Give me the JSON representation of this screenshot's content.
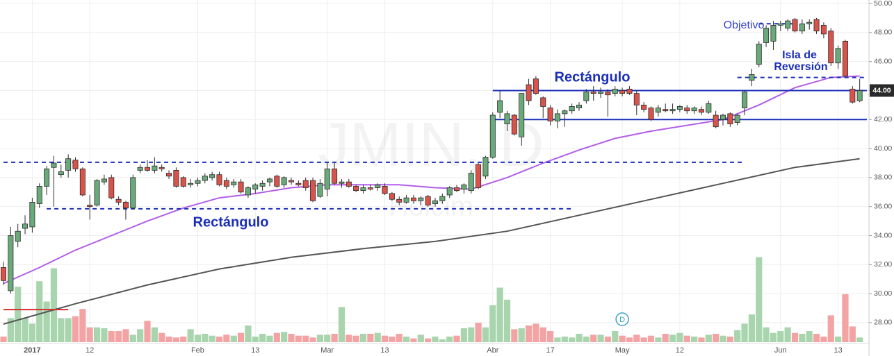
{
  "chart_data": {
    "type": "candlestick",
    "watermark": [
      "JMIN, D",
      "Holcim"
    ],
    "categories": [
      null,
      null,
      null,
      null,
      "2017",
      null,
      null,
      null,
      null,
      null,
      null,
      null,
      "12",
      null,
      null,
      null,
      null,
      null,
      null,
      null,
      null,
      null,
      null,
      null,
      null,
      null,
      null,
      "Feb",
      null,
      null,
      null,
      null,
      null,
      null,
      null,
      "13",
      null,
      null,
      null,
      null,
      null,
      null,
      null,
      null,
      null,
      "Mar",
      null,
      null,
      null,
      null,
      null,
      null,
      null,
      "13",
      null,
      null,
      null,
      null,
      null,
      null,
      null,
      null,
      null,
      null,
      null,
      null,
      null,
      null,
      "Abr",
      null,
      null,
      null,
      null,
      null,
      null,
      null,
      "17",
      null,
      null,
      null,
      null,
      null,
      null,
      null,
      null,
      null,
      "May",
      null,
      null,
      null,
      null,
      null,
      null,
      null,
      "12",
      null,
      null,
      null,
      null,
      null,
      null,
      null,
      null,
      null,
      null,
      null,
      null,
      null,
      "Jun",
      null,
      null,
      null,
      null,
      null,
      null,
      null,
      "13",
      null,
      null,
      null
    ],
    "open": [
      31.8,
      30.2,
      33.6,
      34.5,
      34.6,
      36.2,
      37.4,
      38.7,
      38.2,
      38.5,
      39.2,
      38.6,
      36.1,
      36.1,
      37.7,
      38.0,
      36.5,
      36.3,
      35.9,
      38.5,
      38.7,
      38.5,
      38.7,
      38.3,
      38.5,
      38.0,
      37.5,
      37.6,
      37.8,
      38.0,
      38.2,
      37.8,
      37.5,
      37.7,
      36.8,
      37.2,
      37.4,
      37.7,
      38.1,
      37.5,
      37.8,
      37.6,
      37.8,
      37.8,
      36.7,
      37.2,
      38.6,
      37.6,
      37.7,
      37.4,
      37.1,
      37.3,
      37.3,
      37.4,
      36.9,
      36.5,
      36.3,
      36.6,
      36.4,
      36.7,
      36.2,
      36.4,
      36.8,
      37.3,
      37.2,
      37.1,
      38.9,
      38.1,
      39.4,
      42.5,
      41.7,
      42.3,
      40.8,
      44.4,
      44.8,
      43.5,
      42.8,
      41.9,
      42.4,
      42.6,
      42.8,
      43.3,
      43.9,
      43.8,
      43.9,
      43.8,
      44.0,
      44.1,
      43.8,
      43.0,
      42.8,
      42.5,
      42.7,
      42.6,
      42.7,
      42.8,
      42.6,
      42.7,
      42.5,
      42.3,
      42.0,
      42.4,
      41.8,
      42.8,
      44.7,
      45.8,
      47.3,
      47.4,
      48.5,
      48.3,
      48.9,
      48.1,
      48.6,
      48.9,
      48.5,
      48.1,
      45.9,
      47.4,
      44.1,
      43.3
    ],
    "high": [
      32.2,
      34.6,
      34.8,
      35.4,
      36.6,
      37.6,
      38.8,
      39.5,
      38.9,
      39.6,
      39.4,
      38.7,
      36.8,
      37.9,
      38.2,
      38.2,
      36.7,
      36.4,
      38.2,
      38.9,
      39.2,
      39.4,
      38.9,
      38.5,
      38.7,
      38.1,
      37.9,
      38.0,
      38.3,
      38.4,
      38.4,
      38.0,
      37.9,
      37.9,
      37.4,
      37.6,
      37.8,
      38.0,
      38.2,
      38.1,
      38.0,
      37.8,
      38.0,
      38.0,
      37.9,
      39.0,
      39.0,
      37.9,
      37.9,
      37.5,
      37.5,
      37.5,
      37.6,
      37.6,
      37.0,
      36.7,
      36.8,
      36.8,
      36.7,
      36.8,
      36.6,
      36.9,
      37.4,
      37.5,
      37.6,
      38.5,
      39.0,
      39.5,
      42.5,
      44.0,
      42.6,
      42.4,
      43.8,
      44.8,
      45.0,
      43.6,
      43.0,
      42.7,
      42.7,
      43.1,
      43.2,
      44.1,
      44.3,
      44.2,
      44.1,
      44.3,
      44.2,
      44.3,
      44.0,
      43.2,
      42.9,
      43.0,
      43.1,
      43.1,
      43.0,
      43.0,
      42.9,
      42.9,
      43.3,
      42.6,
      42.4,
      42.5,
      42.4,
      44.0,
      45.5,
      47.4,
      48.5,
      48.8,
      48.8,
      48.9,
      49.0,
      48.9,
      48.9,
      49.0,
      48.7,
      48.3,
      47.1,
      47.5,
      44.3,
      44.8
    ],
    "low": [
      30.6,
      30.0,
      33.2,
      34.1,
      34.2,
      35.9,
      36.8,
      36.0,
      38.0,
      38.0,
      38.4,
      36.7,
      35.1,
      36.0,
      37.5,
      36.5,
      36.1,
      35.1,
      35.8,
      38.3,
      38.4,
      38.3,
      38.4,
      37.9,
      37.3,
      37.3,
      37.3,
      37.4,
      37.6,
      37.8,
      37.4,
      37.2,
      37.3,
      36.9,
      36.6,
      36.9,
      37.1,
      37.4,
      37.3,
      37.3,
      37.5,
      37.4,
      37.1,
      36.3,
      36.6,
      36.7,
      37.5,
      37.3,
      37.3,
      37.0,
      36.9,
      37.1,
      37.1,
      36.8,
      36.4,
      36.1,
      36.2,
      36.2,
      36.1,
      36.0,
      36.0,
      36.2,
      36.6,
      37.0,
      36.9,
      36.9,
      37.2,
      37.9,
      39.3,
      42.1,
      41.2,
      40.9,
      40.2,
      43.0,
      43.7,
      42.1,
      41.6,
      41.4,
      41.5,
      42.4,
      42.6,
      43.1,
      43.3,
      43.5,
      42.2,
      43.6,
      43.6,
      43.7,
      42.3,
      42.5,
      41.9,
      42.2,
      42.5,
      42.4,
      42.5,
      42.4,
      42.4,
      42.3,
      42.4,
      41.4,
      41.6,
      41.5,
      41.6,
      42.3,
      44.3,
      45.6,
      47.0,
      46.8,
      48.1,
      48.1,
      48.0,
      47.9,
      48.2,
      47.9,
      47.6,
      45.7,
      45.5,
      44.9,
      43.1,
      43.2
    ],
    "close": [
      30.9,
      34.0,
      34.3,
      34.8,
      36.3,
      37.4,
      38.6,
      39.0,
      38.4,
      39.3,
      38.6,
      36.8,
      36.0,
      37.8,
      37.9,
      36.6,
      36.3,
      35.9,
      38.0,
      38.7,
      38.5,
      38.8,
      38.6,
      38.1,
      37.4,
      37.4,
      37.6,
      37.8,
      38.1,
      38.2,
      37.5,
      37.4,
      37.7,
      37.0,
      37.3,
      37.5,
      37.6,
      37.9,
      37.4,
      38.0,
      37.7,
      37.5,
      37.3,
      36.4,
      37.6,
      38.6,
      37.6,
      37.7,
      37.4,
      37.1,
      37.3,
      37.2,
      37.5,
      36.9,
      36.5,
      36.3,
      36.6,
      36.4,
      36.6,
      36.1,
      36.4,
      36.7,
      37.3,
      37.1,
      37.5,
      38.3,
      37.3,
      39.4,
      42.3,
      43.3,
      42.4,
      41.0,
      43.8,
      43.3,
      43.8,
      42.9,
      41.9,
      42.4,
      42.6,
      42.9,
      43.0,
      43.9,
      43.8,
      43.9,
      43.7,
      44.1,
      43.8,
      43.8,
      43.0,
      42.7,
      42.0,
      42.8,
      42.6,
      42.7,
      42.9,
      42.6,
      42.8,
      42.5,
      43.1,
      41.5,
      42.3,
      41.7,
      42.3,
      43.9,
      45.1,
      47.2,
      48.3,
      48.5,
      48.6,
      48.8,
      48.1,
      48.6,
      48.7,
      48.1,
      47.9,
      45.9,
      46.9,
      45.0,
      43.2,
      44.0
    ],
    "volume": [
      6,
      26,
      60,
      26,
      20,
      66,
      44,
      80,
      26,
      26,
      28,
      36,
      16,
      16,
      15,
      12,
      12,
      14,
      8,
      14,
      23,
      16,
      10,
      6,
      5,
      6,
      14,
      8,
      9,
      7,
      6,
      8,
      7,
      10,
      18,
      6,
      9,
      7,
      10,
      11,
      9,
      7,
      7,
      5,
      8,
      8,
      9,
      38,
      8,
      7,
      9,
      9,
      10,
      7,
      6,
      9,
      6,
      4,
      8,
      4,
      6,
      3,
      6,
      7,
      15,
      16,
      21,
      16,
      40,
      59,
      46,
      14,
      15,
      18,
      20,
      16,
      12,
      5,
      6,
      5,
      9,
      6,
      8,
      8,
      6,
      12,
      7,
      5,
      8,
      5,
      7,
      5,
      9,
      8,
      10,
      7,
      6,
      5,
      8,
      9,
      7,
      6,
      13,
      20,
      30,
      92,
      16,
      10,
      12,
      16,
      10,
      9,
      12,
      9,
      6,
      29,
      6,
      52,
      17,
      5
    ],
    "volume_lim": [
      0,
      100
    ],
    "up_color": "#6aa97a",
    "down_color": "#d9534a",
    "up_volume_color": "#a8d5ad",
    "down_volume_color": "#f3a3a3",
    "lines": [
      {
        "color": "#555555",
        "x": [
          0,
          10,
          20,
          30,
          40,
          50,
          60,
          70,
          80,
          90,
          100,
          110,
          119
        ],
        "values": [
          27.9,
          29.3,
          30.6,
          31.7,
          32.5,
          33.1,
          33.6,
          34.3,
          35.4,
          36.5,
          37.6,
          38.7,
          39.3
        ]
      },
      {
        "color": "#b25ee8",
        "x": [
          0,
          5,
          10,
          15,
          20,
          25,
          30,
          35,
          40,
          45,
          50,
          55,
          60,
          65,
          70,
          75,
          80,
          85,
          90,
          95,
          100,
          105,
          110,
          115,
          119
        ],
        "values": [
          30.7,
          31.8,
          33.0,
          34.0,
          35.0,
          35.9,
          36.6,
          36.9,
          37.3,
          37.5,
          37.5,
          37.5,
          37.3,
          37.2,
          38.0,
          39.0,
          39.9,
          40.7,
          41.2,
          41.6,
          42.0,
          43.0,
          44.2,
          44.9,
          45.0
        ]
      }
    ],
    "levels": [
      {
        "value": 39.05,
        "from": 0,
        "to": 103,
        "style": "dashed",
        "color": "#1a2eb8"
      },
      {
        "value": 35.85,
        "from": 6,
        "to": 79,
        "style": "dashed",
        "color": "#1a2eb8"
      },
      {
        "value": 44.0,
        "from": 68,
        "to": 120,
        "style": "solid",
        "color": "#1a2eb8"
      },
      {
        "value": 42.0,
        "from": 68,
        "to": 120,
        "style": "solid",
        "color": "#1a2eb8"
      },
      {
        "value": 44.9,
        "from": 102,
        "to": 120,
        "style": "dashed",
        "color": "#1a2eb8"
      },
      {
        "value": 48.6,
        "from": 105,
        "to": 110,
        "style": "dashed",
        "color": "#1a2eb8"
      },
      {
        "value": 28.9,
        "from": 0,
        "to": 9,
        "style": "solid",
        "color": "#d32f2f"
      }
    ],
    "annotations": [
      {
        "text": "Rectángulo"
      },
      {
        "text": "Rectángulo"
      },
      {
        "text": "Objetivo"
      },
      {
        "text": "Isla de"
      },
      {
        "text": "Reversión"
      }
    ],
    "events": [
      {
        "label": "D",
        "index": 86
      }
    ],
    "last_price": {
      "value": 44.0,
      "label": "44.00"
    },
    "ylim": [
      25.7,
      50.24
    ],
    "yticks": [
      {
        "value": 28,
        "label": "28.00"
      },
      {
        "value": 30,
        "label": "30.00"
      },
      {
        "value": 32,
        "label": "32.00"
      },
      {
        "value": 34,
        "label": "34.00"
      },
      {
        "value": 36,
        "label": "36.00"
      },
      {
        "value": 38,
        "label": "38.00"
      },
      {
        "value": 40,
        "label": "40.00"
      },
      {
        "value": 42,
        "label": "42.00"
      },
      {
        "value": 44,
        "label": "44.00"
      },
      {
        "value": 46,
        "label": "46.00"
      },
      {
        "value": 48,
        "label": "48.00"
      },
      {
        "value": 50,
        "label": "50.00"
      }
    ],
    "grid": true
  }
}
